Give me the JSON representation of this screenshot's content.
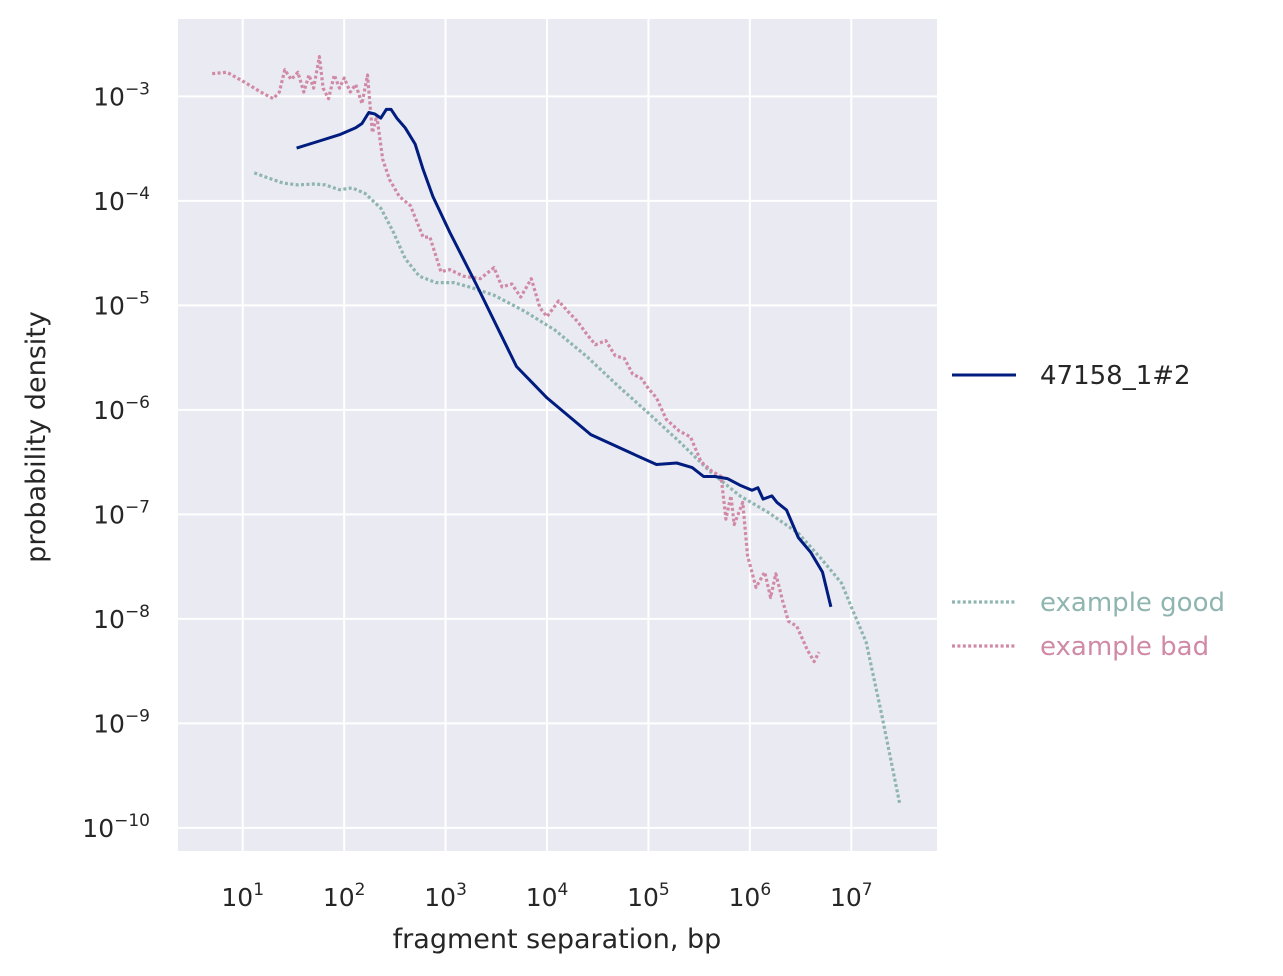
{
  "chart_data": {
    "type": "line",
    "xlabel": "fragment separation, bp",
    "ylabel": "probability density",
    "x_scale": "log",
    "y_scale": "log",
    "xlim": [
      2.3,
      70000000
    ],
    "ylim": [
      6e-11,
      0.0055
    ],
    "grid": true,
    "x_ticks": [
      {
        "value": 10,
        "mantissa": "10",
        "exp": "1"
      },
      {
        "value": 100,
        "mantissa": "10",
        "exp": "2"
      },
      {
        "value": 1000,
        "mantissa": "10",
        "exp": "3"
      },
      {
        "value": 10000,
        "mantissa": "10",
        "exp": "4"
      },
      {
        "value": 100000,
        "mantissa": "10",
        "exp": "5"
      },
      {
        "value": 1000000,
        "mantissa": "10",
        "exp": "6"
      },
      {
        "value": 10000000,
        "mantissa": "10",
        "exp": "7"
      }
    ],
    "y_ticks": [
      {
        "value": 0.001,
        "mantissa": "10",
        "exp": "−3"
      },
      {
        "value": 0.0001,
        "mantissa": "10",
        "exp": "−4"
      },
      {
        "value": 1e-05,
        "mantissa": "10",
        "exp": "−5"
      },
      {
        "value": 1e-06,
        "mantissa": "10",
        "exp": "−6"
      },
      {
        "value": 1e-07,
        "mantissa": "10",
        "exp": "−7"
      },
      {
        "value": 1e-08,
        "mantissa": "10",
        "exp": "−8"
      },
      {
        "value": 1e-09,
        "mantissa": "10",
        "exp": "−9"
      },
      {
        "value": 1e-10,
        "mantissa": "10",
        "exp": "−10"
      }
    ],
    "series": [
      {
        "name": "47158_1#2",
        "color": "#001c7f",
        "style": "solid",
        "legend_group": "main",
        "points": [
          [
            34,
            0.00032
          ],
          [
            55,
            0.00037
          ],
          [
            90,
            0.00043
          ],
          [
            130,
            0.0005
          ],
          [
            150,
            0.00055
          ],
          [
            175,
            0.0007
          ],
          [
            200,
            0.00068
          ],
          [
            230,
            0.00062
          ],
          [
            260,
            0.00075
          ],
          [
            290,
            0.00075
          ],
          [
            330,
            0.00062
          ],
          [
            400,
            0.0005
          ],
          [
            500,
            0.00035
          ],
          [
            600,
            0.0002
          ],
          [
            750,
            0.00011
          ],
          [
            1100,
            5e-05
          ],
          [
            2000,
            1.6e-05
          ],
          [
            5000,
            2.6e-06
          ],
          [
            10000,
            1.3e-06
          ],
          [
            27000,
            5.8e-07
          ],
          [
            70000,
            3.8e-07
          ],
          [
            120000,
            3e-07
          ],
          [
            190000,
            3.1e-07
          ],
          [
            270000,
            2.8e-07
          ],
          [
            350000,
            2.3e-07
          ],
          [
            450000,
            2.3e-07
          ],
          [
            600000,
            2.2e-07
          ],
          [
            800000,
            1.9e-07
          ],
          [
            1050000,
            1.7e-07
          ],
          [
            1200000,
            1.8e-07
          ],
          [
            1350000,
            1.4e-07
          ],
          [
            1650000,
            1.5e-07
          ],
          [
            1850000,
            1.3e-07
          ],
          [
            2300000,
            1.1e-07
          ],
          [
            3000000,
            6e-08
          ],
          [
            4000000,
            4.3e-08
          ],
          [
            5200000,
            2.8e-08
          ],
          [
            6300000,
            1.3e-08
          ]
        ]
      },
      {
        "name": "example good",
        "color": "#8fb5b1",
        "style": "dotted",
        "legend_group": "examples",
        "points": [
          [
            13,
            0.000185
          ],
          [
            18,
            0.000165
          ],
          [
            25,
            0.000148
          ],
          [
            35,
            0.000142
          ],
          [
            50,
            0.000145
          ],
          [
            65,
            0.000142
          ],
          [
            90,
            0.000128
          ],
          [
            120,
            0.000133
          ],
          [
            160,
            0.000118
          ],
          [
            230,
            8.5e-05
          ],
          [
            300,
            5.2e-05
          ],
          [
            400,
            2.8e-05
          ],
          [
            550,
            1.9e-05
          ],
          [
            800,
            1.65e-05
          ],
          [
            1200,
            1.65e-05
          ],
          [
            1800,
            1.48e-05
          ],
          [
            3000,
            1.25e-05
          ],
          [
            6000,
            8.8e-06
          ],
          [
            12000,
            5.8e-06
          ],
          [
            25000,
            3.2e-06
          ],
          [
            50000,
            1.7e-06
          ],
          [
            100000,
            9.3e-07
          ],
          [
            200000,
            5e-07
          ],
          [
            400000,
            2.6e-07
          ],
          [
            800000,
            1.5e-07
          ],
          [
            1500000,
            1.05e-07
          ],
          [
            3000000,
            6.6e-08
          ],
          [
            5000000,
            3.8e-08
          ],
          [
            8000000,
            2.2e-08
          ],
          [
            10000000,
            1.3e-08
          ],
          [
            14000000,
            6e-09
          ],
          [
            20000000,
            1.2e-09
          ],
          [
            30000000,
            1.7e-10
          ]
        ]
      },
      {
        "name": "example bad",
        "color": "#d08aa6",
        "style": "dotted",
        "legend_group": "examples",
        "points": [
          [
            5,
            0.00165
          ],
          [
            7,
            0.0017
          ],
          [
            10,
            0.0014
          ],
          [
            15,
            0.0011
          ],
          [
            20,
            0.00095
          ],
          [
            23,
            0.0011
          ],
          [
            26,
            0.0018
          ],
          [
            30,
            0.00145
          ],
          [
            35,
            0.0017
          ],
          [
            40,
            0.0011
          ],
          [
            45,
            0.0016
          ],
          [
            50,
            0.0012
          ],
          [
            57,
            0.0024
          ],
          [
            62,
            0.0012
          ],
          [
            70,
            0.00095
          ],
          [
            80,
            0.0016
          ],
          [
            90,
            0.0012
          ],
          [
            100,
            0.0015
          ],
          [
            115,
            0.0011
          ],
          [
            130,
            0.0013
          ],
          [
            150,
            0.00085
          ],
          [
            170,
            0.0016
          ],
          [
            190,
            0.00045
          ],
          [
            210,
            0.00065
          ],
          [
            240,
            0.00025
          ],
          [
            280,
            0.00016
          ],
          [
            350,
            0.00011
          ],
          [
            450,
            9e-05
          ],
          [
            600,
            4.5e-05
          ],
          [
            700,
            4.5e-05
          ],
          [
            900,
            2.1e-05
          ],
          [
            1100,
            2.2e-05
          ],
          [
            1500,
            1.9e-05
          ],
          [
            2200,
            1.8e-05
          ],
          [
            3000,
            2.3e-05
          ],
          [
            3600,
            1.5e-05
          ],
          [
            4500,
            1.6e-05
          ],
          [
            5500,
            1.2e-05
          ],
          [
            7000,
            1.8e-05
          ],
          [
            8500,
            9.5e-06
          ],
          [
            10000,
            7.8e-06
          ],
          [
            13000,
            1.1e-05
          ],
          [
            16000,
            8.8e-06
          ],
          [
            20000,
            7e-06
          ],
          [
            25000,
            5.2e-06
          ],
          [
            30000,
            4.2e-06
          ],
          [
            38000,
            4.6e-06
          ],
          [
            47000,
            3.3e-06
          ],
          [
            58000,
            3.1e-06
          ],
          [
            70000,
            2.2e-06
          ],
          [
            85000,
            2e-06
          ],
          [
            100000,
            1.6e-06
          ],
          [
            120000,
            1.3e-06
          ],
          [
            150000,
            8.1e-07
          ],
          [
            200000,
            6.3e-07
          ],
          [
            260000,
            5.5e-07
          ],
          [
            330000,
            3.2e-07
          ],
          [
            420000,
            2.6e-07
          ],
          [
            520000,
            2.3e-07
          ],
          [
            580000,
            9e-08
          ],
          [
            650000,
            1.5e-07
          ],
          [
            700000,
            8e-08
          ],
          [
            850000,
            1.3e-07
          ],
          [
            950000,
            4e-08
          ],
          [
            1150000,
            2e-08
          ],
          [
            1400000,
            2.8e-08
          ],
          [
            1600000,
            1.6e-08
          ],
          [
            1800000,
            2.7e-08
          ],
          [
            2100000,
            1.5e-08
          ],
          [
            2400000,
            9.5e-09
          ],
          [
            2900000,
            8.5e-09
          ],
          [
            3700000,
            5e-09
          ],
          [
            4300000,
            3.9e-09
          ],
          [
            4800000,
            4.8e-09
          ]
        ]
      }
    ]
  }
}
